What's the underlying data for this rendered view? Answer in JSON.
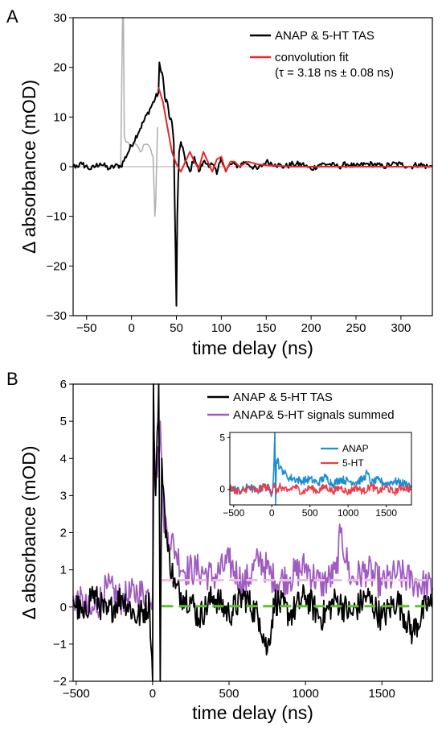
{
  "chart_data": [
    {
      "panel": "A",
      "type": "line",
      "xlabel": "time delay (ns)",
      "ylabel": "Δ absorbance (mOD)",
      "xlim": [
        -65,
        335
      ],
      "ylim": [
        -30,
        30
      ],
      "xticks": [
        -50,
        0,
        50,
        100,
        150,
        200,
        250,
        300
      ],
      "yticks": [
        -30,
        -20,
        -10,
        0,
        10,
        20,
        30
      ],
      "grid": false,
      "legend_position": "top-right",
      "zero_line": true,
      "series": [
        {
          "name": "ANAP & 5-HT TAS",
          "color": "#000000",
          "x": [
            -65,
            -55,
            -45,
            -35,
            -25,
            -15,
            -12,
            30,
            31,
            33,
            35,
            37,
            40,
            42,
            45,
            47,
            50,
            51,
            53,
            55,
            57,
            60,
            65,
            70,
            75,
            80,
            85,
            90,
            95,
            100,
            105,
            110,
            115,
            120,
            125,
            130,
            140,
            150,
            160,
            170,
            180,
            190,
            200,
            210,
            220,
            230,
            240,
            250,
            260,
            270,
            280,
            290,
            300,
            310,
            320,
            330,
            335
          ],
          "y": [
            0,
            0.5,
            -0.5,
            0.7,
            -0.4,
            0.3,
            0,
            15,
            21,
            19,
            18,
            14,
            13,
            10,
            9,
            5,
            -28,
            -10,
            3,
            5,
            4,
            1,
            -1,
            2,
            -1,
            1,
            0.5,
            0.5,
            -1.5,
            2,
            -1,
            0.5,
            0.5,
            0,
            1,
            0.5,
            -0.5,
            1,
            0.5,
            0,
            0.5,
            0.5,
            -0.5,
            0.5,
            0.5,
            0,
            0.5,
            0,
            0.5,
            0.5,
            0,
            0.5,
            0.5,
            0,
            0.5,
            0,
            0
          ]
        },
        {
          "name": "",
          "color": "#b2b2b2",
          "x": [
            -12,
            -10,
            -9,
            -8,
            -6,
            -5,
            0,
            5,
            10,
            15,
            20,
            24,
            26,
            27,
            29
          ],
          "y": [
            0,
            30,
            30,
            6,
            5,
            5,
            4,
            4.5,
            3,
            4.5,
            4,
            2,
            -10,
            -7,
            8
          ]
        },
        {
          "name": "convolution fit",
          "color": "#e8262a",
          "x": [
            30,
            35,
            40,
            45,
            50,
            55,
            60,
            65,
            70,
            75,
            80,
            85,
            90,
            95,
            100,
            105,
            110,
            115,
            120,
            125,
            130,
            140,
            150,
            160,
            170,
            180,
            190,
            200,
            250,
            300,
            335
          ],
          "y": [
            16,
            13,
            8,
            3,
            0.5,
            -1,
            1,
            3,
            1,
            -0.5,
            3,
            1,
            -1,
            1.5,
            2,
            -1,
            1,
            1,
            0,
            0.5,
            1,
            0.5,
            0.3,
            0.2,
            0.1,
            0,
            0,
            0,
            0,
            0,
            0
          ]
        }
      ]
    },
    {
      "panel": "B",
      "type": "line",
      "xlabel": "time delay (ns)",
      "ylabel": "Δ absorbance (mOD)",
      "xlim": [
        -520,
        1830
      ],
      "ylim": [
        -2,
        6
      ],
      "xticks": [
        -500,
        0,
        500,
        1000,
        1500
      ],
      "yticks": [
        -2,
        -1,
        0,
        1,
        2,
        3,
        4,
        5,
        6
      ],
      "grid": false,
      "legend_position": "top-right",
      "series": [
        {
          "name": "ANAP & 5-HT TAS",
          "color": "#000000",
          "x": [
            -520,
            -450,
            -400,
            -300,
            -200,
            -100,
            -20,
            0,
            5,
            10,
            20,
            40,
            50,
            60,
            80,
            100,
            150,
            200,
            250,
            300,
            400,
            500,
            600,
            700,
            750,
            800,
            900,
            1000,
            1100,
            1200,
            1300,
            1400,
            1500,
            1600,
            1700,
            1800,
            1830
          ],
          "y": [
            0.2,
            -0.3,
            0.4,
            -0.2,
            0.3,
            -0.3,
            0.1,
            -2,
            6,
            4.5,
            3,
            6,
            -2,
            4,
            2.5,
            1.5,
            0.5,
            0.3,
            0.2,
            -0.3,
            0.3,
            -0.2,
            0.3,
            -0.3,
            -1.2,
            0.2,
            -0.2,
            0.3,
            -0.3,
            0.2,
            -0.2,
            0.3,
            -0.3,
            0.2,
            -0.7,
            0.1,
            0
          ]
        },
        {
          "name": "ANAP& 5-HT signals summed",
          "color": "#9f5cc0",
          "x": [
            -520,
            -400,
            -300,
            -200,
            -100,
            0,
            10,
            30,
            50,
            70,
            100,
            150,
            200,
            300,
            400,
            500,
            600,
            700,
            800,
            900,
            1000,
            1100,
            1200,
            1230,
            1300,
            1400,
            1500,
            1600,
            1700,
            1830
          ],
          "y": [
            0.3,
            -0.2,
            0.5,
            0.2,
            0.4,
            0.3,
            4.5,
            3.5,
            5,
            2.5,
            2,
            1.5,
            1,
            1,
            0.8,
            1.2,
            0.6,
            1.3,
            0.7,
            0.8,
            1.1,
            0.6,
            0.9,
            2,
            0.7,
            1,
            0.6,
            0.9,
            0.7,
            0.5
          ]
        },
        {
          "name": "",
          "color": "#f2b8e6",
          "style": "dashed",
          "x": [
            60,
            1830
          ],
          "y": [
            0.72,
            0.72
          ]
        },
        {
          "name": "",
          "color": "#5ec02b",
          "style": "dashed",
          "x": [
            60,
            1830
          ],
          "y": [
            0.02,
            0.02
          ]
        }
      ],
      "inset": {
        "type": "line",
        "xlim": [
          -550,
          1830
        ],
        "ylim": [
          -1.5,
          5.5
        ],
        "xticks": [
          -500,
          0,
          500,
          1000,
          1500
        ],
        "yticks": [
          0,
          5
        ],
        "legend_position": "top-right",
        "series": [
          {
            "name": "ANAP",
            "color": "#1b8fd2",
            "x": [
              -550,
              -400,
              -300,
              -200,
              -100,
              -20,
              0,
              20,
              40,
              50,
              60,
              80,
              100,
              150,
              200,
              300,
              400,
              500,
              600,
              700,
              800,
              900,
              1000,
              1100,
              1200,
              1250,
              1300,
              1400,
              1500,
              1600,
              1700,
              1830
            ],
            "y": [
              0.2,
              -0.2,
              0.3,
              -0.2,
              0.3,
              0,
              -0.5,
              1,
              5.5,
              -1.5,
              2.5,
              3,
              2,
              1.8,
              1.2,
              1,
              0.8,
              1,
              0.6,
              1.2,
              0.5,
              1,
              0.8,
              0.7,
              1,
              1.6,
              0.6,
              0.9,
              0.5,
              0.8,
              0.6,
              0.4
            ]
          },
          {
            "name": "5-HT",
            "color": "#ee3b4a",
            "x": [
              -550,
              -400,
              -300,
              -200,
              -100,
              0,
              30,
              60,
              100,
              200,
              300,
              400,
              500,
              600,
              700,
              800,
              900,
              1000,
              1100,
              1200,
              1300,
              1400,
              1500,
              1600,
              1700,
              1830
            ],
            "y": [
              0.1,
              -0.3,
              0.2,
              -0.2,
              0.3,
              -0.2,
              0.6,
              -0.4,
              0.3,
              -0.2,
              0.3,
              -0.3,
              0.2,
              -0.2,
              0.3,
              -0.2,
              0.2,
              -0.3,
              0.2,
              -0.2,
              0.3,
              -0.2,
              0.2,
              -0.3,
              0.2,
              0
            ]
          }
        ]
      }
    }
  ],
  "legend_a": {
    "tas": "ANAP & 5-HT TAS",
    "fit": "convolution fit",
    "fit_param": "(τ = 3.18 ns ± 0.08 ns)"
  },
  "legend_b": {
    "tas": "ANAP & 5-HT TAS",
    "summed": "ANAP& 5-HT signals summed"
  },
  "legend_inset": {
    "anap": "ANAP",
    "serotonin": "5-HT"
  }
}
